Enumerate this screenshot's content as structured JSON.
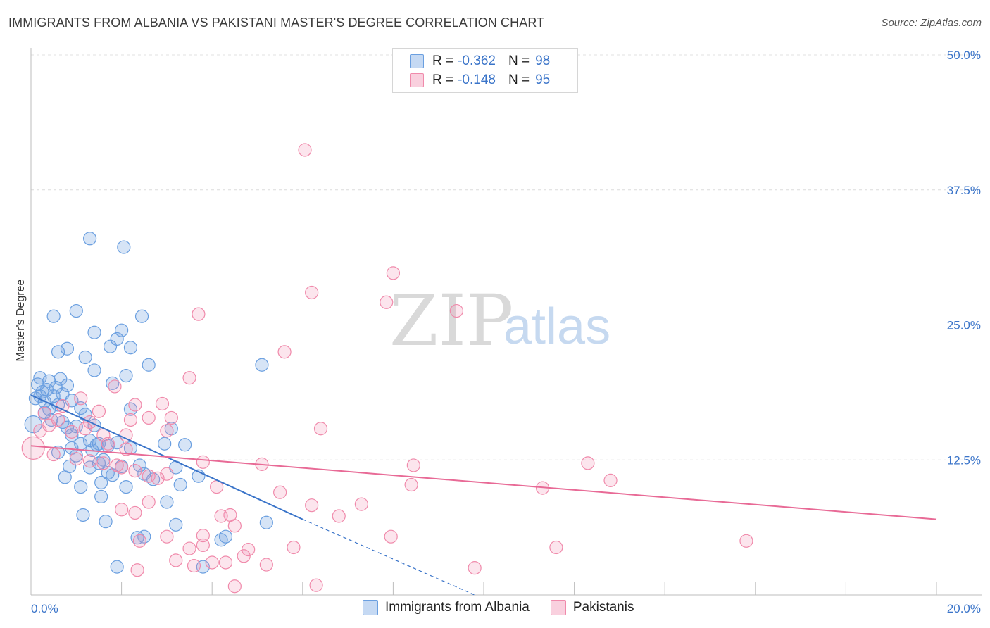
{
  "header": {
    "title": "IMMIGRANTS FROM ALBANIA VS PAKISTANI MASTER'S DEGREE CORRELATION CHART",
    "source": "Source: ZipAtlas.com"
  },
  "watermark": {
    "zip": "ZIP",
    "atlas": "atlas"
  },
  "legend": {
    "rows": [
      {
        "r_label": "R =",
        "r_value": "-0.362",
        "n_label": "N =",
        "n_value": "98",
        "color": "#6a9fe0"
      },
      {
        "r_label": "R =",
        "r_value": "-0.148",
        "n_label": "N =",
        "n_value": "95",
        "color": "#f08aab"
      }
    ]
  },
  "bottom_legend": {
    "items": [
      {
        "label": "Immigrants from Albania",
        "color": "#6a9fe0"
      },
      {
        "label": "Pakistanis",
        "color": "#f08aab"
      }
    ]
  },
  "chart_data": {
    "type": "scatter",
    "title": "IMMIGRANTS FROM ALBANIA VS PAKISTANI MASTER'S DEGREE CORRELATION CHART",
    "xlabel": "",
    "ylabel": "Master's Degree",
    "xlim": [
      0,
      20
    ],
    "ylim": [
      0,
      50
    ],
    "x_tick_labels": [
      "0.0%",
      "20.0%"
    ],
    "y_ticks": [
      12.5,
      25.0,
      37.5,
      50.0
    ],
    "y_tick_labels": [
      "12.5%",
      "25.0%",
      "37.5%",
      "50.0%"
    ],
    "grid": true,
    "series": [
      {
        "name": "Immigrants from Albania",
        "color": "#6a9fe0",
        "line_color": "#3a74c9",
        "trend": {
          "x0": 0.0,
          "y0": 18.5,
          "x1": 6.0,
          "y1": 7.0,
          "dash_to_x": 9.8,
          "dash_to_y": 0.0
        },
        "points": [
          [
            0.1,
            18.2
          ],
          [
            0.15,
            19.5
          ],
          [
            0.2,
            20.1
          ],
          [
            0.25,
            18.8
          ],
          [
            0.3,
            17.9
          ],
          [
            0.35,
            19.0
          ],
          [
            0.4,
            19.8
          ],
          [
            0.5,
            18.4
          ],
          [
            0.55,
            19.2
          ],
          [
            0.6,
            17.6
          ],
          [
            0.65,
            20.0
          ],
          [
            0.7,
            18.6
          ],
          [
            0.8,
            19.4
          ],
          [
            0.9,
            18.0
          ],
          [
            0.3,
            16.9
          ],
          [
            0.45,
            16.2
          ],
          [
            0.5,
            25.8
          ],
          [
            0.6,
            22.5
          ],
          [
            0.8,
            22.8
          ],
          [
            1.0,
            26.3
          ],
          [
            1.2,
            22.0
          ],
          [
            1.4,
            20.8
          ],
          [
            1.4,
            24.3
          ],
          [
            1.3,
            33.0
          ],
          [
            1.75,
            23.0
          ],
          [
            1.9,
            23.7
          ],
          [
            2.0,
            24.5
          ],
          [
            2.05,
            32.2
          ],
          [
            2.2,
            22.9
          ],
          [
            2.45,
            25.8
          ],
          [
            2.6,
            21.3
          ],
          [
            1.8,
            19.6
          ],
          [
            2.1,
            20.3
          ],
          [
            1.1,
            17.3
          ],
          [
            1.2,
            16.7
          ],
          [
            1.4,
            15.7
          ],
          [
            1.0,
            15.6
          ],
          [
            0.8,
            15.5
          ],
          [
            0.7,
            16.0
          ],
          [
            0.9,
            14.8
          ],
          [
            1.3,
            14.3
          ],
          [
            1.5,
            14.0
          ],
          [
            1.7,
            13.8
          ],
          [
            1.9,
            14.1
          ],
          [
            2.2,
            13.6
          ],
          [
            2.4,
            12.0
          ],
          [
            2.5,
            11.2
          ],
          [
            2.7,
            10.7
          ],
          [
            2.2,
            17.2
          ],
          [
            3.1,
            15.4
          ],
          [
            3.4,
            13.9
          ],
          [
            3.7,
            11.0
          ],
          [
            3.2,
            11.8
          ],
          [
            3.3,
            10.2
          ],
          [
            1.0,
            12.9
          ],
          [
            1.1,
            10.0
          ],
          [
            0.85,
            11.9
          ],
          [
            0.75,
            10.9
          ],
          [
            1.3,
            11.8
          ],
          [
            1.5,
            12.2
          ],
          [
            1.6,
            12.5
          ],
          [
            1.7,
            11.3
          ],
          [
            1.8,
            11.1
          ],
          [
            2.0,
            11.9
          ],
          [
            2.1,
            10.0
          ],
          [
            1.55,
            10.4
          ],
          [
            1.55,
            9.1
          ],
          [
            1.15,
            7.4
          ],
          [
            1.65,
            6.8
          ],
          [
            2.5,
            5.4
          ],
          [
            2.35,
            5.3
          ],
          [
            3.2,
            6.5
          ],
          [
            4.3,
            5.4
          ],
          [
            5.2,
            6.7
          ],
          [
            1.9,
            2.6
          ],
          [
            3.8,
            2.6
          ],
          [
            4.2,
            5.1
          ],
          [
            5.1,
            21.3
          ],
          [
            0.6,
            13.2
          ],
          [
            0.9,
            13.6
          ],
          [
            1.1,
            14.0
          ],
          [
            1.35,
            13.4
          ],
          [
            1.45,
            13.9
          ],
          [
            2.95,
            14.0
          ],
          [
            3.0,
            8.6
          ],
          [
            0.05,
            15.8
          ],
          [
            0.2,
            18.4
          ],
          [
            0.4,
            17.2
          ]
        ]
      },
      {
        "name": "Pakistanis",
        "color": "#f08aab",
        "line_color": "#e86a96",
        "trend": {
          "x0": 0.0,
          "y0": 13.8,
          "x1": 20.0,
          "y1": 7.0
        },
        "points": [
          [
            6.05,
            41.2
          ],
          [
            8.0,
            29.8
          ],
          [
            6.2,
            28.0
          ],
          [
            7.85,
            27.1
          ],
          [
            9.4,
            26.3
          ],
          [
            3.7,
            26.0
          ],
          [
            5.6,
            22.5
          ],
          [
            3.5,
            20.1
          ],
          [
            1.85,
            19.3
          ],
          [
            2.3,
            17.6
          ],
          [
            2.9,
            17.7
          ],
          [
            1.5,
            17.0
          ],
          [
            2.6,
            16.4
          ],
          [
            3.1,
            16.4
          ],
          [
            2.2,
            16.2
          ],
          [
            3.0,
            15.2
          ],
          [
            6.4,
            15.4
          ],
          [
            2.1,
            14.8
          ],
          [
            1.2,
            15.4
          ],
          [
            1.6,
            14.8
          ],
          [
            0.9,
            15.1
          ],
          [
            1.7,
            14.0
          ],
          [
            2.1,
            13.5
          ],
          [
            0.6,
            16.2
          ],
          [
            0.4,
            15.7
          ],
          [
            0.3,
            16.8
          ],
          [
            0.2,
            15.2
          ],
          [
            0.05,
            13.6
          ],
          [
            1.0,
            12.6
          ],
          [
            1.3,
            12.4
          ],
          [
            1.6,
            12.2
          ],
          [
            2.0,
            11.8
          ],
          [
            2.3,
            11.5
          ],
          [
            2.6,
            11.0
          ],
          [
            3.0,
            11.2
          ],
          [
            3.8,
            12.3
          ],
          [
            4.1,
            10.0
          ],
          [
            5.1,
            12.1
          ],
          [
            5.5,
            9.5
          ],
          [
            6.2,
            8.3
          ],
          [
            6.8,
            7.3
          ],
          [
            7.3,
            8.4
          ],
          [
            8.45,
            12.0
          ],
          [
            8.4,
            10.2
          ],
          [
            11.3,
            9.9
          ],
          [
            12.3,
            12.2
          ],
          [
            12.8,
            10.6
          ],
          [
            2.0,
            7.9
          ],
          [
            2.3,
            7.6
          ],
          [
            2.6,
            8.6
          ],
          [
            3.0,
            5.4
          ],
          [
            3.5,
            4.3
          ],
          [
            3.8,
            5.5
          ],
          [
            4.4,
            7.4
          ],
          [
            4.5,
            6.4
          ],
          [
            4.0,
            3.0
          ],
          [
            4.7,
            3.6
          ],
          [
            4.8,
            4.2
          ],
          [
            5.2,
            2.8
          ],
          [
            5.8,
            4.4
          ],
          [
            6.3,
            0.9
          ],
          [
            7.95,
            5.4
          ],
          [
            9.8,
            2.5
          ],
          [
            11.6,
            4.4
          ],
          [
            15.8,
            5.0
          ],
          [
            2.4,
            5.0
          ],
          [
            3.2,
            3.2
          ],
          [
            3.6,
            2.7
          ],
          [
            2.35,
            2.3
          ],
          [
            4.3,
            3.0
          ],
          [
            4.5,
            0.8
          ],
          [
            3.8,
            4.6
          ],
          [
            4.2,
            7.3
          ],
          [
            1.9,
            12.0
          ],
          [
            2.8,
            10.8
          ],
          [
            0.7,
            17.5
          ],
          [
            1.1,
            18.2
          ],
          [
            0.5,
            13.0
          ],
          [
            1.3,
            16.0
          ]
        ]
      }
    ]
  }
}
